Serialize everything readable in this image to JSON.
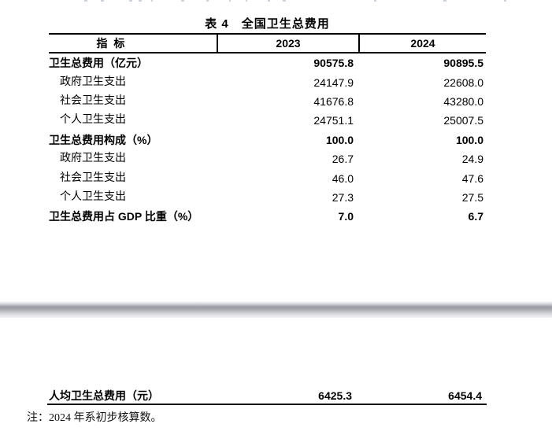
{
  "page": {
    "title": "表 4　全国卫生总费用",
    "footnote": "注：2024 年系初步核算数。"
  },
  "table": {
    "columns": {
      "indicator": "指 标",
      "y2023": "2023",
      "y2024": "2024"
    },
    "rows": [
      {
        "label": "卫生总费用（亿元）",
        "v2023": "90575.8",
        "v2024": "90895.5",
        "bold": true,
        "indent": false
      },
      {
        "label": "政府卫生支出",
        "v2023": "24147.9",
        "v2024": "22608.0",
        "bold": false,
        "indent": true
      },
      {
        "label": "社会卫生支出",
        "v2023": "41676.8",
        "v2024": "43280.0",
        "bold": false,
        "indent": true
      },
      {
        "label": "个人卫生支出",
        "v2023": "24751.1",
        "v2024": "25007.5",
        "bold": false,
        "indent": true
      },
      {
        "label": "卫生总费用构成（%）",
        "v2023": "100.0",
        "v2024": "100.0",
        "bold": true,
        "indent": false
      },
      {
        "label": "政府卫生支出",
        "v2023": "26.7",
        "v2024": "24.9",
        "bold": false,
        "indent": true
      },
      {
        "label": "社会卫生支出",
        "v2023": "46.0",
        "v2024": "47.6",
        "bold": false,
        "indent": true
      },
      {
        "label": "个人卫生支出",
        "v2023": "27.3",
        "v2024": "27.5",
        "bold": false,
        "indent": true
      },
      {
        "label": "卫生总费用占 GDP 比重（%）",
        "v2023": "7.0",
        "v2024": "6.7",
        "bold": true,
        "indent": false
      }
    ],
    "continuation_row": {
      "label": "人均卫生总费用（元）",
      "v2023": "6425.3",
      "v2024": "6454.4"
    }
  },
  "decor": {
    "gap_color_dark": "#9b9ba3",
    "gap_color_light": "#f0f1f4",
    "remnant_positions": [
      107,
      128,
      164,
      176,
      192,
      230,
      262,
      291,
      312,
      340,
      359,
      475,
      563,
      640
    ]
  }
}
